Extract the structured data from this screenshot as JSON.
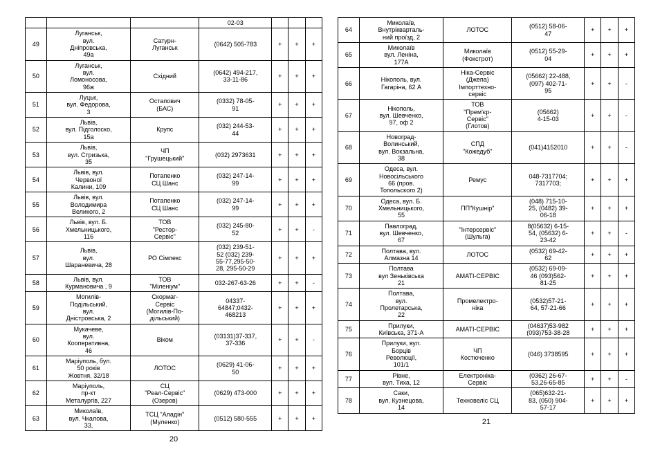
{
  "columns": [
    "n",
    "addr",
    "company",
    "phone",
    "m1",
    "m2",
    "m3"
  ],
  "leftPageNum": "20",
  "rightPageNum": "21",
  "leftRows": [
    {
      "n": "",
      "addr": "",
      "company": "",
      "phone": "02-03",
      "m1": "",
      "m2": "",
      "m3": ""
    },
    {
      "n": "49",
      "addr": "Луганськ,\nвул.\nДніпровська,\n49а",
      "company": "Сатурн-\nЛуганськ",
      "phone": "(0642) 505-783",
      "m1": "+",
      "m2": "+",
      "m3": "+"
    },
    {
      "n": "50",
      "addr": "Луганськ,\nвул.\nЛомоносова,\n96ж",
      "company": "Східний",
      "phone": "(0642) 494-217,\n33-11-86",
      "m1": "+",
      "m2": "+",
      "m3": "+"
    },
    {
      "n": "51",
      "addr": "Луцьк,\nвул. Федорова,\n3",
      "company": "Остапович\n(БАС)",
      "phone": "(0332) 78-05-\n91",
      "m1": "+",
      "m2": "+",
      "m3": "+"
    },
    {
      "n": "52",
      "addr": "Львів,\nвул. Підголоско,\n15а",
      "company": "Крупс",
      "phone": "(032) 244-53-\n44",
      "m1": "+",
      "m2": "+",
      "m3": "+"
    },
    {
      "n": "53",
      "addr": "Львів,\nвул. Стризька,\n35",
      "company": "ЧП\n\"Грушецький\"",
      "phone": "(032) 2973631",
      "m1": "+",
      "m2": "+",
      "m3": "+"
    },
    {
      "n": "54",
      "addr": "Львів, вул.\nЧервоної\nКалини, 109",
      "company": "Потапенко\nСЦ Шанс",
      "phone": "(032) 247-14-\n99",
      "m1": "+",
      "m2": "+",
      "m3": "+"
    },
    {
      "n": "55",
      "addr": "Львів, вул.\nВолодимира\nВеликого, 2",
      "company": "Потапенко\nСЦ Шанс",
      "phone": "(032) 247-14-\n99",
      "m1": "+",
      "m2": "+",
      "m3": "+"
    },
    {
      "n": "56",
      "addr": "Львів, вул. Б.\nХмельницького,\n116",
      "company": "ТОВ\n\"Рестор-\nСервіс\"",
      "phone": "(032) 245-80-\n52",
      "m1": "+",
      "m2": "+",
      "m3": "-"
    },
    {
      "n": "57",
      "addr": "Львів,\nвул.\nШараневича, 28",
      "company": "РО Сімпекс",
      "phone": "(032) 239-51-\n52 (032) 239-\n55-77,295-50-\n28, 295-50-29",
      "m1": "+",
      "m2": "+",
      "m3": "+"
    },
    {
      "n": "58",
      "addr": "Львів, вул.\nКурмановича , 9",
      "company": "ТОВ\n\"Міленіум\"",
      "phone": "032-267-63-26",
      "m1": "+",
      "m2": "+",
      "m3": "-"
    },
    {
      "n": "59",
      "addr": "Могилів-\nПодільський,\nвул.\nДністровська, 2",
      "company": "Скормаг-\nСервіс\n(Могилів-По-\nдільський)",
      "phone": "04337-\n64847;0432-\n468213",
      "m1": "+",
      "m2": "+",
      "m3": "+"
    },
    {
      "n": "60",
      "addr": "Мукачеве,\nвул.\nКооперативна,\n46",
      "company": "Віком",
      "phone": "(03131)37-337,\n37-336",
      "m1": "+",
      "m2": "+",
      "m3": "-"
    },
    {
      "n": "61",
      "addr": "Маріуполь, бул.\n50 років\nЖовтня, 32/18",
      "company": "ЛОТОС",
      "phone": "(0629) 41-06-\n50",
      "m1": "+",
      "m2": "+",
      "m3": "+"
    },
    {
      "n": "62",
      "addr": "Маріуполь,\nпр-кт\nМеталургів, 227",
      "company": "СЦ\n\"Реал-Сервіс\"\n(Озеров)",
      "phone": "(0629) 473-000",
      "m1": "+",
      "m2": "+",
      "m3": "+"
    },
    {
      "n": "63",
      "addr": "Миколаїв,\nвул. Чкалова,\n33,",
      "company": "ТСЦ \"Аладін\"\n(Муленко)",
      "phone": "(0512) 580-555",
      "m1": "+",
      "m2": "+",
      "m3": "+"
    }
  ],
  "rightRows": [
    {
      "n": "64",
      "addr": "Миколаїв,\nВнутрікварталь-\nний проїзд, 2",
      "company": "ЛОТОС",
      "phone": "(0512) 58-06-\n47",
      "m1": "+",
      "m2": "+",
      "m3": "+"
    },
    {
      "n": "65",
      "addr": "Миколаїв\nвул. Леніна,\n177А",
      "company": "Миколаїв\n(Фокстрот)",
      "phone": "(0512) 55-29-\n04",
      "m1": "+",
      "m2": "+",
      "m3": "+"
    },
    {
      "n": "66",
      "addr": "Нікополь, вул.\nГагаріна, 62 А",
      "company": "Ніка-Сервіс\n(Джепа)\nІмпорттехно-\nсервіс",
      "phone": "(05662) 22-488,\n(097) 402-71-\n95",
      "m1": "+",
      "m2": "+",
      "m3": "-"
    },
    {
      "n": "67",
      "addr": "Нікополь,\nвул. Шевченко,\n97, оф 2",
      "company": "ТОВ\n\"Прем'єр-\nСервіс\"\n(Глотов)",
      "phone": "(05662)\n4-15-03",
      "m1": "+",
      "m2": "+",
      "m3": "-"
    },
    {
      "n": "68",
      "addr": "Новоград-\nВолинський,\nвул. Вокзальна,\n38",
      "company": "СПД\n\"Кожедуб\"",
      "phone": "(041)4152010",
      "m1": "+",
      "m2": "+",
      "m3": "-"
    },
    {
      "n": "69",
      "addr": "Одеса,  вул.\nНовосільського\n66 (пров.\nТопольского 2)",
      "company": "Ремус",
      "phone": "048-7317704;\n7317703;",
      "m1": "+",
      "m2": "+",
      "m3": "+"
    },
    {
      "n": "70",
      "addr": "Одеса, вул. Б.\nХмельницького,\n55",
      "company": "ПП\"Кушнір\"",
      "phone": "(048) 715-10-\n25, (0482) 39-\n06-18",
      "m1": "+",
      "m2": "+",
      "m3": "+"
    },
    {
      "n": "71",
      "addr": "Павлоград,\nвул. Шевченко,\n67",
      "company": "\"Інтерсервіс\"\n(Шульга)",
      "phone": "8(05632) 6-15-\n54, (05632) 6-\n23-42",
      "m1": "+",
      "m2": "+",
      "m3": "-"
    },
    {
      "n": "72",
      "addr": "Полтава, вул.\nАлмазна 14",
      "company": "ЛОТОС",
      "phone": "(0532) 69-42-\n62",
      "m1": "+",
      "m2": "+",
      "m3": "+"
    },
    {
      "n": "73",
      "addr": "Полтава\nвул Зеньківська\n21",
      "company": "АМАТІ-СЕРВІС",
      "phone": "(0532) 69-09-\n46 (093)562-\n81-25",
      "m1": "+",
      "m2": "+",
      "m3": "+"
    },
    {
      "n": "74",
      "addr": "Полтава,\nвул.\nПролетарська,\n22",
      "company": "Промелектро-\nніка",
      "phone": "(0532)57-21-\n64, 57-21-66",
      "m1": "+",
      "m2": "+",
      "m3": "+"
    },
    {
      "n": "75",
      "addr": "Прилуки,\nКиївська, 371-А",
      "company": "АМАТІ-СЕРВІС",
      "phone": "(04637)53-982\n(093)753-38-28",
      "m1": "+",
      "m2": "+",
      "m3": "+"
    },
    {
      "n": "76",
      "addr": "Прилуки, вул.\nБорців\nРеволюції,\n101/1",
      "company": "ЧП\nКостюченко",
      "phone": "(046) 3738595",
      "m1": "+",
      "m2": "+",
      "m3": "+"
    },
    {
      "n": "77",
      "addr": "Рівне,\nвул. Тиха, 12",
      "company": "Електроніка-\nСервіс",
      "phone": "(0362) 26-67-\n53,26-65-85",
      "m1": "+",
      "m2": "+",
      "m3": "-"
    },
    {
      "n": "78",
      "addr": "Саки,\nвул. Кузнецова,\n14",
      "company": "Техновеліс СЦ",
      "phone": "(065)632-21-\n83, (050) 904-\n57-17",
      "m1": "+",
      "m2": "+",
      "m3": "+"
    }
  ]
}
